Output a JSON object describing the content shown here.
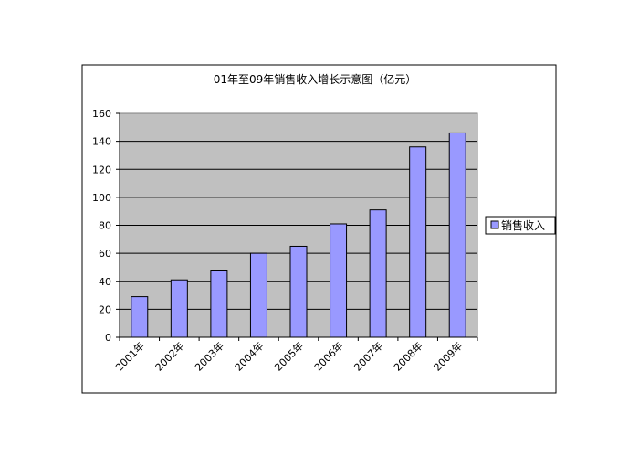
{
  "chart_data": {
    "type": "bar",
    "title": "01年至09年销售收入增长示意图（亿元）",
    "categories": [
      "2001年",
      "2002年",
      "2003年",
      "2004年",
      "2005年",
      "2006年",
      "2007年",
      "2008年",
      "2009年"
    ],
    "series": [
      {
        "name": "销售收入",
        "values": [
          29,
          41,
          48,
          60,
          65,
          81,
          91,
          136,
          146
        ]
      }
    ],
    "ylim": [
      0,
      160
    ],
    "yticks": [
      0,
      20,
      40,
      60,
      80,
      100,
      120,
      140,
      160
    ],
    "grid": true,
    "legend": "right",
    "colors": {
      "bar_fill": "#9999ff",
      "bar_stroke": "#000000",
      "plot_bg": "#c0c0c0",
      "grid": "#000000"
    }
  }
}
